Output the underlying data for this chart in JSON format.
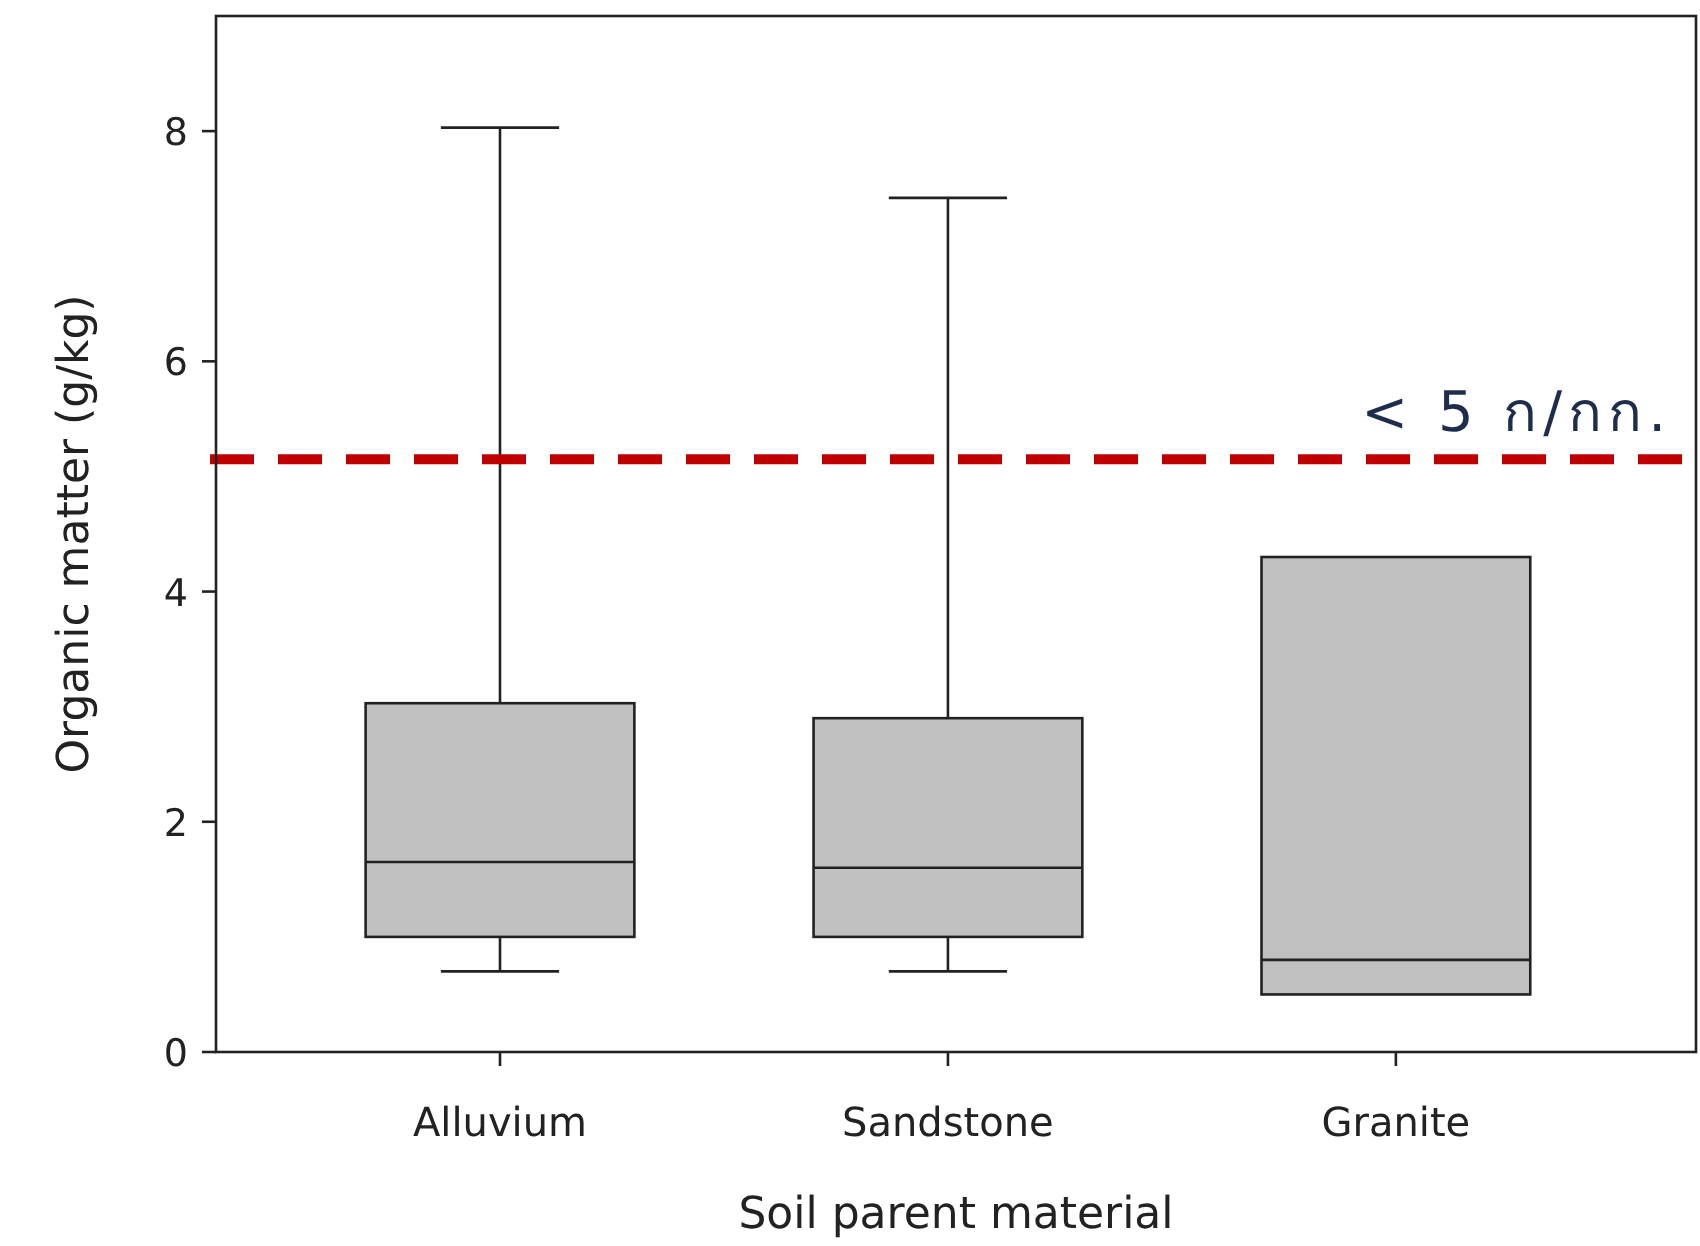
{
  "chart_data": {
    "type": "box",
    "xlabel": "Soil parent material",
    "ylabel": "Organic matter (g/kg)",
    "categories": [
      "Alluvium",
      "Sandstone",
      "Granite"
    ],
    "boxes": [
      {
        "low": 0.7,
        "q1": 1.0,
        "median": 1.65,
        "q3": 3.03,
        "high": 8.03
      },
      {
        "low": 0.7,
        "q1": 1.0,
        "median": 1.6,
        "q3": 2.9,
        "high": 7.42
      },
      {
        "low": 0.5,
        "q1": 0.5,
        "median": 0.8,
        "q3": 4.3,
        "high": 4.3
      }
    ],
    "color": "#c0c0c0",
    "ylim": [
      0,
      9
    ],
    "yticks": [
      0,
      2,
      4,
      6,
      8
    ],
    "grid": false,
    "ref_lines": [
      {
        "axis": "y",
        "value": 5.15,
        "label": "< 5 ก/กก.",
        "color": "#c00000",
        "line_style": "dashed"
      }
    ]
  }
}
